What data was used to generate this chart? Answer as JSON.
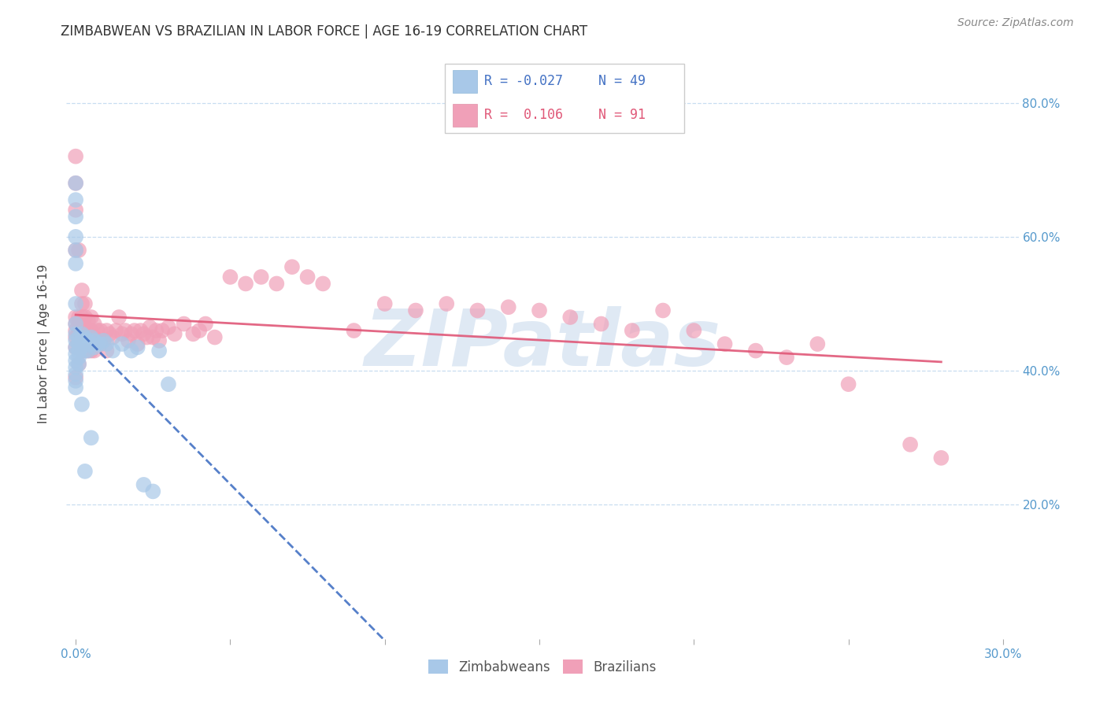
{
  "title": "ZIMBABWEAN VS BRAZILIAN IN LABOR FORCE | AGE 16-19 CORRELATION CHART",
  "source": "Source: ZipAtlas.com",
  "ylabel": "In Labor Force | Age 16-19",
  "watermark": "ZIPatlas",
  "zimbabwean_color": "#a8c8e8",
  "brazilian_color": "#f0a0b8",
  "zimbabwean_line_color": "#4472c4",
  "brazilian_line_color": "#e05878",
  "legend_R1": "-0.027",
  "legend_N1": "49",
  "legend_R2": "0.106",
  "legend_N2": "91",
  "legend_label1": "Zimbabweans",
  "legend_label2": "Brazilians",
  "tick_color": "#5599cc",
  "zim_x": [
    0.0,
    0.0,
    0.0,
    0.0,
    0.0,
    0.0,
    0.0,
    0.0,
    0.0,
    0.0,
    0.0,
    0.0,
    0.0,
    0.0,
    0.0,
    0.0,
    0.0,
    0.001,
    0.001,
    0.001,
    0.001,
    0.001,
    0.002,
    0.002,
    0.002,
    0.002,
    0.003,
    0.003,
    0.003,
    0.003,
    0.004,
    0.004,
    0.005,
    0.005,
    0.005,
    0.006,
    0.006,
    0.007,
    0.008,
    0.009,
    0.01,
    0.012,
    0.015,
    0.018,
    0.02,
    0.022,
    0.025,
    0.027,
    0.03
  ],
  "zim_y": [
    0.68,
    0.655,
    0.63,
    0.6,
    0.58,
    0.56,
    0.5,
    0.47,
    0.455,
    0.445,
    0.435,
    0.425,
    0.415,
    0.405,
    0.395,
    0.385,
    0.375,
    0.45,
    0.44,
    0.43,
    0.42,
    0.41,
    0.455,
    0.445,
    0.435,
    0.35,
    0.45,
    0.44,
    0.43,
    0.25,
    0.445,
    0.43,
    0.45,
    0.44,
    0.3,
    0.445,
    0.435,
    0.44,
    0.44,
    0.445,
    0.44,
    0.43,
    0.44,
    0.43,
    0.435,
    0.23,
    0.22,
    0.43,
    0.38
  ],
  "bra_x": [
    0.0,
    0.0,
    0.0,
    0.0,
    0.0,
    0.0,
    0.0,
    0.0,
    0.0,
    0.0,
    0.001,
    0.001,
    0.001,
    0.001,
    0.001,
    0.002,
    0.002,
    0.002,
    0.002,
    0.002,
    0.003,
    0.003,
    0.003,
    0.003,
    0.004,
    0.004,
    0.004,
    0.005,
    0.005,
    0.005,
    0.006,
    0.006,
    0.006,
    0.007,
    0.007,
    0.008,
    0.008,
    0.009,
    0.01,
    0.01,
    0.011,
    0.012,
    0.013,
    0.014,
    0.015,
    0.016,
    0.017,
    0.018,
    0.019,
    0.02,
    0.021,
    0.022,
    0.023,
    0.024,
    0.025,
    0.026,
    0.027,
    0.028,
    0.03,
    0.032,
    0.035,
    0.038,
    0.04,
    0.042,
    0.045,
    0.05,
    0.055,
    0.06,
    0.065,
    0.07,
    0.075,
    0.08,
    0.09,
    0.1,
    0.11,
    0.12,
    0.13,
    0.14,
    0.15,
    0.16,
    0.17,
    0.18,
    0.19,
    0.2,
    0.21,
    0.22,
    0.23,
    0.24,
    0.25,
    0.27,
    0.28
  ],
  "bra_y": [
    0.72,
    0.68,
    0.64,
    0.58,
    0.48,
    0.47,
    0.46,
    0.45,
    0.435,
    0.39,
    0.58,
    0.48,
    0.47,
    0.46,
    0.41,
    0.52,
    0.5,
    0.48,
    0.46,
    0.43,
    0.5,
    0.48,
    0.46,
    0.43,
    0.475,
    0.46,
    0.43,
    0.48,
    0.46,
    0.43,
    0.47,
    0.45,
    0.43,
    0.46,
    0.44,
    0.46,
    0.44,
    0.445,
    0.46,
    0.43,
    0.455,
    0.45,
    0.46,
    0.48,
    0.455,
    0.46,
    0.445,
    0.455,
    0.46,
    0.44,
    0.46,
    0.455,
    0.45,
    0.465,
    0.45,
    0.46,
    0.445,
    0.46,
    0.465,
    0.455,
    0.47,
    0.455,
    0.46,
    0.47,
    0.45,
    0.54,
    0.53,
    0.54,
    0.53,
    0.555,
    0.54,
    0.53,
    0.46,
    0.5,
    0.49,
    0.5,
    0.49,
    0.495,
    0.49,
    0.48,
    0.47,
    0.46,
    0.49,
    0.46,
    0.44,
    0.43,
    0.42,
    0.44,
    0.38,
    0.29,
    0.27
  ],
  "xlim": [
    -0.003,
    0.305
  ],
  "ylim": [
    0.0,
    0.88
  ],
  "x_ticks": [
    0.0,
    0.3
  ],
  "y_ticks_right": [
    0.2,
    0.4,
    0.6,
    0.8
  ],
  "grid_color": "#c8ddf0",
  "title_fontsize": 12,
  "tick_fontsize": 11,
  "ylabel_fontsize": 11
}
